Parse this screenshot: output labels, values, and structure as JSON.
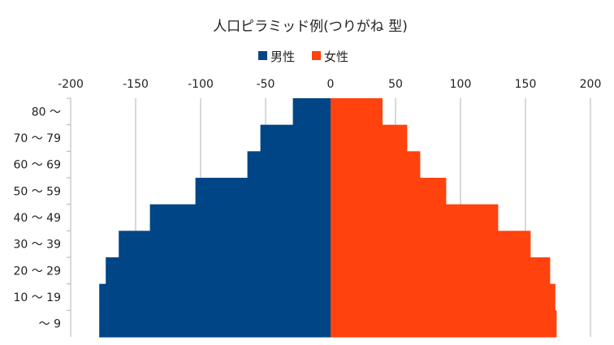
{
  "chart_data": {
    "type": "bar",
    "orientation": "horizontal",
    "title": "人口ピラミッド例(つりがね 型)",
    "categories": [
      "〜 9",
      "10 〜 19",
      "20 〜 29",
      "30 〜 39",
      "40 〜 49",
      "50 〜 59",
      "60 〜 69",
      "70 〜 79",
      "80 〜"
    ],
    "series": [
      {
        "name": "男性",
        "color": "#004586",
        "values": [
          -178,
          -178,
          -173,
          -163,
          -139,
          -104,
          -64,
          -54,
          -29
        ]
      },
      {
        "name": "女性",
        "color": "#ff420e",
        "values": [
          174,
          173,
          169,
          154,
          129,
          89,
          69,
          59,
          40
        ]
      }
    ],
    "xlim": [
      -200,
      200
    ],
    "xticks": [
      "-200",
      "-150",
      "-100",
      "-50",
      "0",
      "50",
      "100",
      "150",
      "200"
    ],
    "grid": "vertical",
    "legend_position": "top-center"
  }
}
